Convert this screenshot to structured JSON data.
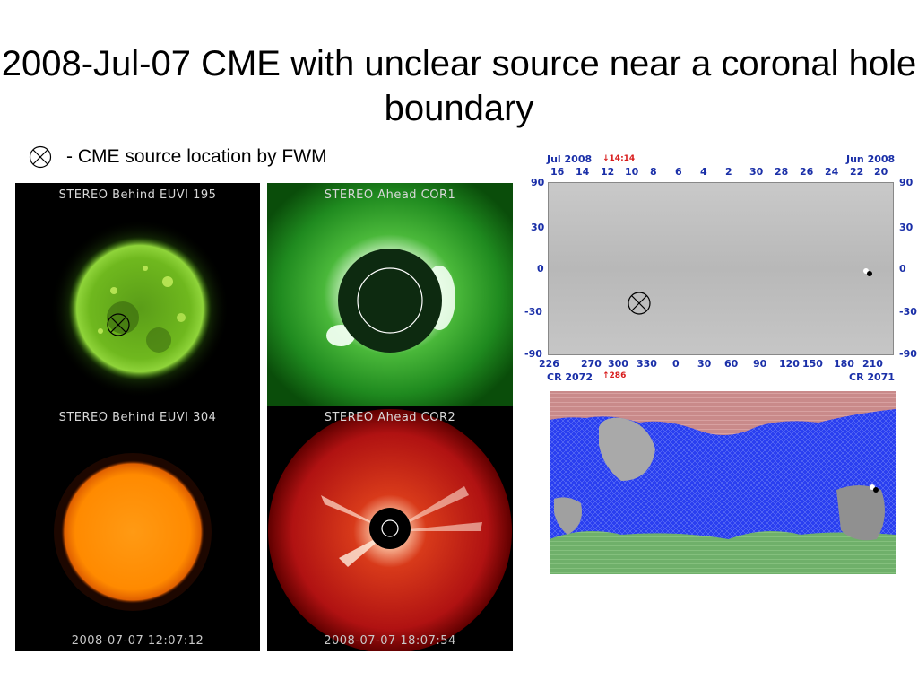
{
  "slide": {
    "title": "2008-Jul-07 CME with unclear source near a coronal hole boundary",
    "legend_text": "- CME source location by FWM"
  },
  "panels": {
    "euvi195": {
      "label": "STEREO Behind EUVI 195"
    },
    "euvi304": {
      "label": "STEREO Behind EUVI 304",
      "timestamp": "2008-07-07 12:07:12"
    },
    "cor1": {
      "label": "STEREO Ahead COR1"
    },
    "cor2": {
      "label": "STEREO Ahead COR2",
      "timestamp": "2008-07-07 18:07:54"
    }
  },
  "synoptic_map": {
    "left_month": "Jul 2008",
    "right_month": "Jun 2008",
    "marker_time": "14:14",
    "day_ticks": [
      "16",
      "14",
      "12",
      "10",
      "8",
      "6",
      "4",
      "2",
      "30",
      "28",
      "26",
      "24",
      "22",
      "20"
    ],
    "lat_ticks": [
      "90",
      "30",
      "0",
      "-30",
      "-90"
    ],
    "lon_ticks": [
      "226",
      "270",
      "300",
      "330",
      "0",
      "30",
      "60",
      "90",
      "120",
      "150",
      "180",
      "210"
    ],
    "left_rotation": "CR 2072",
    "right_rotation": "CR 2071",
    "marker_lon": "286"
  },
  "colors": {
    "euvi195": "#6fbf1f",
    "euvi304": "#ff8a00",
    "cor1": "#1f8a1f",
    "cor2": "#b01212",
    "axis_blue": "#1a2fa8",
    "marker_red": "#d81b1b",
    "field_blue": "#1a2fd8",
    "field_red": "#c98080",
    "field_green": "#6fb06a"
  }
}
